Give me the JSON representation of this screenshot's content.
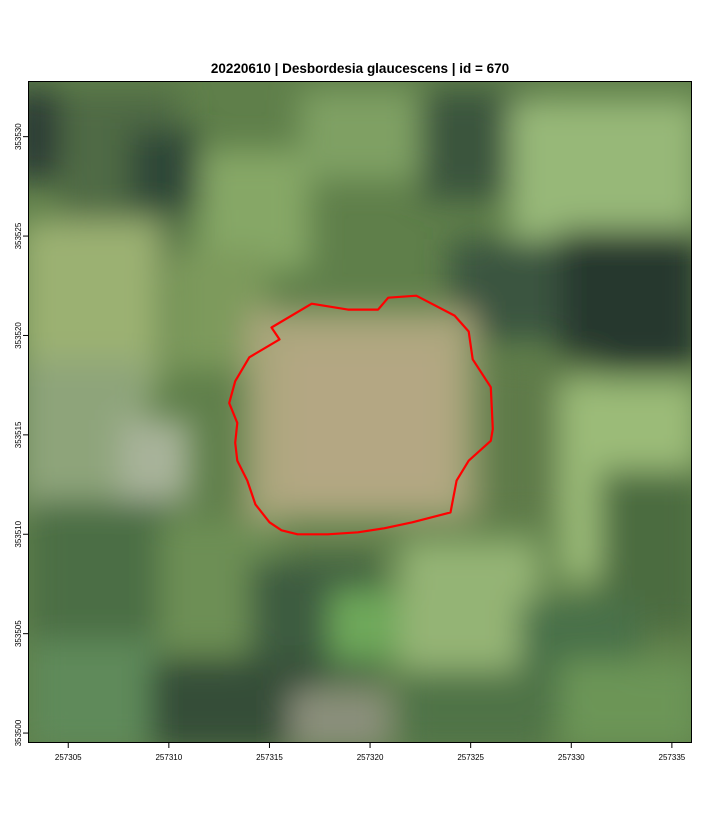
{
  "title": "20220610 | Desbordesia glaucescens | id = 670",
  "map": {
    "kind": "aerial-orthophoto",
    "x_range": [
      257303,
      257336
    ],
    "y_range": [
      353499.5,
      353532.8
    ],
    "x_ticks": [
      257305,
      257310,
      257315,
      257320,
      257325,
      257330,
      257335
    ],
    "y_ticks": [
      353500,
      353505,
      353510,
      353515,
      353520,
      353525,
      353530
    ],
    "outline_color": "#ff0000",
    "crown_outline": [
      [
        257317.1,
        353521.6
      ],
      [
        257318.9,
        353521.3
      ],
      [
        257320.4,
        353521.3
      ],
      [
        257320.9,
        353521.9
      ],
      [
        257322.3,
        353522.0
      ],
      [
        257324.2,
        353521.0
      ],
      [
        257324.9,
        353520.2
      ],
      [
        257325.1,
        353518.8
      ],
      [
        257326.0,
        353517.4
      ],
      [
        257326.1,
        353515.3
      ],
      [
        257326.0,
        353514.7
      ],
      [
        257324.9,
        353513.7
      ],
      [
        257324.3,
        353512.7
      ],
      [
        257324.0,
        353511.1
      ],
      [
        257322.1,
        353510.6
      ],
      [
        257320.7,
        353510.3
      ],
      [
        257319.4,
        353510.1
      ],
      [
        257317.9,
        353510.0
      ],
      [
        257316.4,
        353510.0
      ],
      [
        257315.6,
        353510.2
      ],
      [
        257315.0,
        353510.6
      ],
      [
        257314.3,
        353511.5
      ],
      [
        257313.9,
        353512.7
      ],
      [
        257313.4,
        353513.7
      ],
      [
        257313.3,
        353514.6
      ],
      [
        257313.4,
        353515.6
      ],
      [
        257313.0,
        353516.6
      ],
      [
        257313.3,
        353517.7
      ],
      [
        257314.0,
        353518.9
      ],
      [
        257315.5,
        353519.8
      ],
      [
        257315.1,
        353520.4
      ],
      [
        257317.1,
        353521.6
      ]
    ]
  }
}
